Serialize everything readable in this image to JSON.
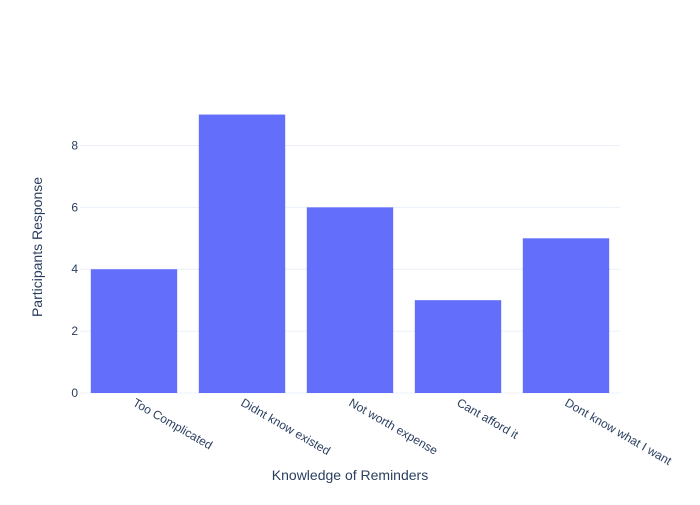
{
  "chart_data": {
    "type": "bar",
    "categories": [
      "Too Complicated",
      "Didnt know existed",
      "Not worth expense",
      "Cant afford it",
      "Dont know what I want"
    ],
    "values": [
      4,
      9,
      6,
      3,
      5
    ],
    "title": "",
    "xlabel": "Knowledge of Reminders",
    "ylabel": "Participants Response",
    "ylim": [
      0,
      9.47
    ],
    "yticks": [
      0,
      2,
      4,
      6,
      8
    ],
    "grid": true,
    "legend": "none",
    "bar_color": "#636efa",
    "grid_color": "#ebf0f8",
    "text_color": "#2a3f5f"
  }
}
